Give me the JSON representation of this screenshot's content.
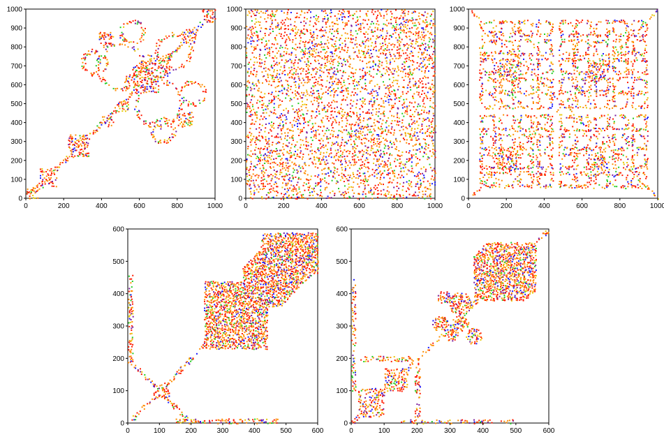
{
  "figure": {
    "palette": {
      "red": "#ff1a00",
      "orange": "#ff8c00",
      "yellow": "#e6c800",
      "green": "#22cc22",
      "blue": "#1a1aff",
      "purple": "#7a1a9a"
    }
  },
  "chart_data": [
    {
      "type": "scatter",
      "description": "Dot-matrix plot with block-diagonal fractal structure along the main diagonal",
      "pattern": "diagonal-fractal",
      "xlim": [
        0,
        1000
      ],
      "ylim": [
        0,
        1000
      ],
      "xticks": [
        0,
        200,
        400,
        600,
        800,
        1000
      ],
      "yticks": [
        0,
        100,
        200,
        300,
        400,
        500,
        600,
        700,
        800,
        900,
        1000
      ],
      "x_tick_labels": [
        "0",
        "200",
        "400",
        "600",
        "800",
        "1000"
      ],
      "y_tick_labels": [
        "0",
        "100",
        "200",
        "300",
        "400",
        "500",
        "600",
        "700",
        "800",
        "900",
        "1000"
      ],
      "grid": false,
      "legend": "none",
      "series": [
        {
          "values": [
            [
              40,
              35
            ],
            [
              120,
              120
            ],
            [
              280,
              280
            ],
            [
              420,
              420
            ],
            [
              500,
              500
            ],
            [
              700,
              700
            ],
            [
              850,
              850
            ],
            [
              970,
              970
            ]
          ]
        }
      ]
    },
    {
      "type": "scatter",
      "description": "Dot-matrix plot with dense random-looking dots across the whole square",
      "pattern": "random-dense",
      "xlim": [
        0,
        1000
      ],
      "ylim": [
        0,
        1000
      ],
      "xticks": [
        0,
        200,
        400,
        600,
        800,
        1000
      ],
      "yticks": [
        0,
        100,
        200,
        300,
        400,
        500,
        600,
        700,
        800,
        900,
        1000
      ],
      "x_tick_labels": [
        "0",
        "200",
        "400",
        "600",
        "800",
        "1000"
      ],
      "y_tick_labels": [
        "0",
        "100",
        "200",
        "300",
        "400",
        "500",
        "600",
        "700",
        "800",
        "900",
        "1000"
      ],
      "grid": false,
      "legend": "none",
      "series": [
        {
          "values": []
        }
      ]
    },
    {
      "type": "scatter",
      "description": "Dot-matrix plot with symmetric grid of square blocks",
      "pattern": "symmetric-grid",
      "xlim": [
        0,
        1000
      ],
      "ylim": [
        0,
        1000
      ],
      "xticks": [
        0,
        200,
        400,
        600,
        800,
        1000
      ],
      "yticks": [
        0,
        100,
        200,
        300,
        400,
        500,
        600,
        700,
        800,
        900,
        1000
      ],
      "x_tick_labels": [
        "0",
        "200",
        "400",
        "600",
        "800",
        "1000"
      ],
      "y_tick_labels": [
        "0",
        "100",
        "200",
        "300",
        "400",
        "500",
        "600",
        "700",
        "800",
        "900",
        "1000"
      ],
      "grid": false,
      "legend": "none",
      "series": [
        {
          "values": [
            [
              200,
              200
            ],
            [
              200,
              700
            ],
            [
              650,
              700
            ],
            [
              650,
              200
            ],
            [
              400,
              400
            ]
          ]
        }
      ]
    },
    {
      "type": "scatter",
      "description": "Dot-matrix plot with a dense blob structure toward the upper right",
      "pattern": "blob-upper-right",
      "xlim": [
        0,
        600
      ],
      "ylim": [
        0,
        600
      ],
      "xticks": [
        0,
        100,
        200,
        300,
        400,
        500,
        600
      ],
      "yticks": [
        0,
        100,
        200,
        300,
        400,
        500,
        600
      ],
      "x_tick_labels": [
        "0",
        "100",
        "200",
        "300",
        "400",
        "500",
        "600"
      ],
      "y_tick_labels": [
        "0",
        "100",
        "200",
        "300",
        "400",
        "500",
        "600"
      ],
      "grid": false,
      "legend": "none",
      "series": [
        {
          "values": [
            [
              5,
              5
            ],
            [
              100,
              100
            ],
            [
              230,
              230
            ],
            [
              310,
              300
            ],
            [
              350,
              300
            ],
            [
              310,
              360
            ],
            [
              500,
              500
            ]
          ]
        }
      ]
    },
    {
      "type": "scatter",
      "description": "Dot-matrix plot with squares near the origin and a dense blob toward the upper right",
      "pattern": "squares-and-blob",
      "xlim": [
        0,
        600
      ],
      "ylim": [
        0,
        600
      ],
      "xticks": [
        0,
        100,
        200,
        300,
        400,
        500,
        600
      ],
      "yticks": [
        0,
        100,
        200,
        300,
        400,
        500,
        600
      ],
      "x_tick_labels": [
        "0",
        "100",
        "200",
        "300",
        "400",
        "500",
        "600"
      ],
      "y_tick_labels": [
        "0",
        "100",
        "200",
        "300",
        "400",
        "500",
        "600"
      ],
      "grid": false,
      "legend": "none",
      "series": [
        {
          "values": [
            [
              60,
              60
            ],
            [
              130,
              130
            ],
            [
              270,
              300
            ],
            [
              330,
              330
            ],
            [
              370,
              370
            ],
            [
              470,
              470
            ]
          ]
        }
      ]
    }
  ]
}
